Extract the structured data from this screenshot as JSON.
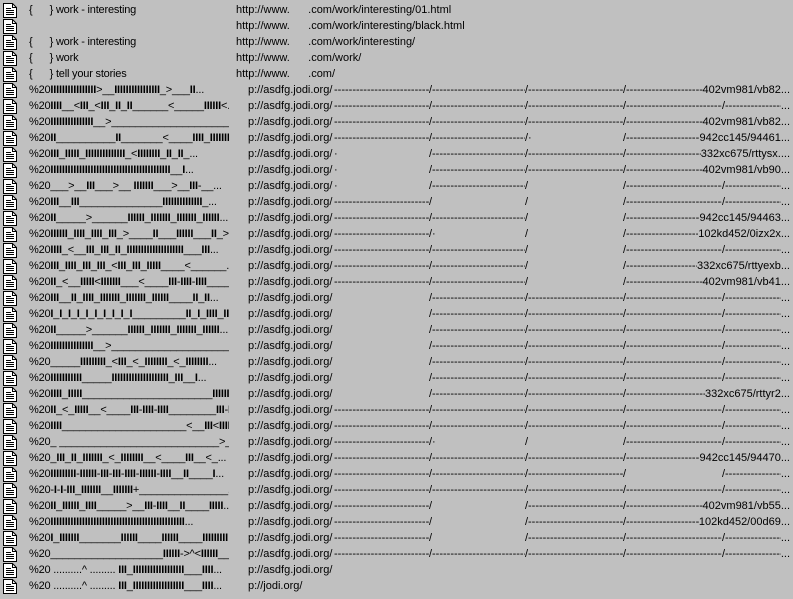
{
  "background": "#c0c0c0",
  "icon": "document-icon",
  "base_url": "p://asdfg.jodi.org/",
  "rows": [
    {
      "name": "{      } work - interesting",
      "url": "http://www.      .com/work/interesting/01.html"
    },
    {
      "name": "",
      "url": "http://www.      .com/work/interesting/black.html"
    },
    {
      "name": "{      } work - interesting",
      "url": "http://www.      .com/work/interesting/"
    },
    {
      "name": "{      } work",
      "url": "http://www.      .com/work/"
    },
    {
      "name": "{      } tell your stories",
      "url": "http://www.      .com/"
    },
    {
      "name": "%20IIIIIIIIIIIIIIII>__IIIIIIIIIIIIIIII_>___II...",
      "segs": [
        "F",
        "F",
        "F"
      ],
      "tail": "402vm981/vb82..."
    },
    {
      "name": "%20IIII__<III_<III_II_II______<_____IIIIII<...",
      "segs": [
        "F",
        "F",
        "F",
        "F"
      ],
      "tail": "..."
    },
    {
      "name": "%20IIIIIIIIIIIIIII__>____________________...",
      "segs": [
        "F",
        "F",
        "F"
      ],
      "tail": "402vm981/vb82..."
    },
    {
      "name": "%20II__________II_______<____IIII_IIIIIII...",
      "segs": [
        "F",
        "F",
        "S"
      ],
      "tail": "942cc145/94461..."
    },
    {
      "name": "%20III_IIIII_IIIIIIIIIIIIII_<IIIIIIII_II_II_...",
      "segs": [
        "S",
        "F",
        "F"
      ],
      "tail": "332xc675/rttysx...."
    },
    {
      "name": "%20IIIIIIIIIIIIIIIIIIIIIIIIIIIIIIIIIIIIIIIIII__I...",
      "segs": [
        "S",
        "F",
        "F"
      ],
      "tail": "402vm981/vb90..."
    },
    {
      "name": "%20___>__III___>__ IIIIIII___>__III-__...",
      "segs": [
        "S",
        "F",
        "B",
        "F"
      ],
      "tail": "..."
    },
    {
      "name": "%20III__III______________IIIIIIIIIIIIII_...",
      "segs": [
        "F",
        "B",
        "B",
        "F"
      ],
      "tail": "..."
    },
    {
      "name": "%20II_____>______IIIIII_IIIIIII_IIIIIII_IIIIII...",
      "segs": [
        "F",
        "F",
        "B"
      ],
      "tail": "942cc145/94463..."
    },
    {
      "name": "%20IIIIII_IIII_IIII_III_>____II___IIIIII___II_>...",
      "segs": [
        "F",
        "S",
        "B"
      ],
      "tail": "102kd452/0izx2x..."
    },
    {
      "name": "%20IIII_<__III_III_II_IIIIIIIIIIIIIIIIIIII___III...",
      "segs": [
        "F",
        "F",
        "B",
        "F"
      ],
      "tail": "..."
    },
    {
      "name": "%20III_IIII_III_III_<III_III_IIIII____<______...",
      "segs": [
        "F",
        "F",
        "B"
      ],
      "tail": "332xc675/rttyexb..."
    },
    {
      "name": "%20II_<__IIIII<IIIIIII___<____III-IIII-IIII____...",
      "segs": [
        "F",
        "F",
        "B"
      ],
      "tail": "402vm981/vb41..."
    },
    {
      "name": "%20III__II_IIII_IIIIIII_IIIIIII_IIIIII____II_II...",
      "segs": [
        "B",
        "F",
        "F",
        "F"
      ],
      "tail": "..."
    },
    {
      "name": "%20I_I_I_I_I_I_I_I_I_I_________II_I_IIII_II_I...",
      "segs": [
        "B",
        "F",
        "F",
        "F"
      ],
      "tail": "..."
    },
    {
      "name": "%20II_____>______IIIIII_IIIIIII_IIIIIII_IIIIII...",
      "segs": [
        "B",
        "F",
        "F",
        "F"
      ],
      "tail": "..."
    },
    {
      "name": "%20IIIIIIIIIIIIIII__>____________________...",
      "segs": [
        "B",
        "F",
        "F",
        "F"
      ],
      "tail": "..."
    },
    {
      "name": "%20_____IIIIIIIII_<III_<_IIIIIIII_<_IIIIIIII...",
      "segs": [
        "B",
        "F",
        "F",
        "F"
      ],
      "tail": "..."
    },
    {
      "name": "%20IIIIIIIIIII_____IIIIIIIIIIIIIIIIIIII_III__I...",
      "segs": [
        "B",
        "F",
        "F",
        "F"
      ],
      "tail": "..."
    },
    {
      "name": "%20IIII_IIIII______________________IIIIIIII...",
      "segs": [
        "B",
        "F",
        "F"
      ],
      "tail": "332xc675/rttyr2..."
    },
    {
      "name": "%20II_<_IIIII__<____III-IIII-IIII________III-III...",
      "segs": [
        "F",
        "F",
        "F",
        "F"
      ],
      "tail": "..."
    },
    {
      "name": "%20IIII_____________________<__III<IIIIIII...",
      "segs": [
        "F",
        "F",
        "F",
        "F"
      ],
      "tail": "..."
    },
    {
      "name": "%20_ ___________________________>____...",
      "segs": [
        "F",
        "S",
        "B",
        "F"
      ],
      "tail": "..."
    },
    {
      "name": "%20_III_II_IIIIIII_<_IIIIIIII__<____III__<_...",
      "segs": [
        "F",
        "F",
        "F"
      ],
      "tail": "942cc145/94470..."
    },
    {
      "name": "%20IIIIIIIII-IIIIII-III-III-IIII-IIIIII-IIII__II____I...",
      "segs": [
        "F",
        "F",
        "F",
        "B"
      ],
      "tail": "..."
    },
    {
      "name": "%20-I-I-III_IIIIIII__IIIIIII+_______________...",
      "segs": [
        "F",
        "F",
        "F",
        "F"
      ],
      "tail": "..."
    },
    {
      "name": "%20II_IIIIII_IIII_____>__III-IIII__II____IIIII...",
      "segs": [
        "F",
        "B",
        "F"
      ],
      "tail": "402vm981/vb55..."
    },
    {
      "name": "%20IIIIIIIIIIIIIIIIIIIIIIIIIIIIIIIIIIIIIIIIIIIIIII...",
      "segs": [
        "F",
        "B",
        "F"
      ],
      "tail": "102kd452/00d69..."
    },
    {
      "name": "%20I_IIIIIII_______IIIIII____IIIIII____IIIIIIIII...",
      "segs": [
        "F",
        "B",
        "F",
        "F"
      ],
      "tail": "..."
    },
    {
      "name": "%20___________________IIIIII->^<IIIIII____...",
      "segs": [
        "F",
        "F",
        "F",
        "F"
      ],
      "tail": "..."
    },
    {
      "name": "%20 ..........^ ......... III_IIIIIIIIIIIIIIIIII___IIII...",
      "purl": "p://asdfg.jodi.org/"
    },
    {
      "name": "%20 ..........^ ......... III_IIIIIIIIIIIIIIIIII___IIII...",
      "purl": "p://jodi.org/"
    }
  ]
}
